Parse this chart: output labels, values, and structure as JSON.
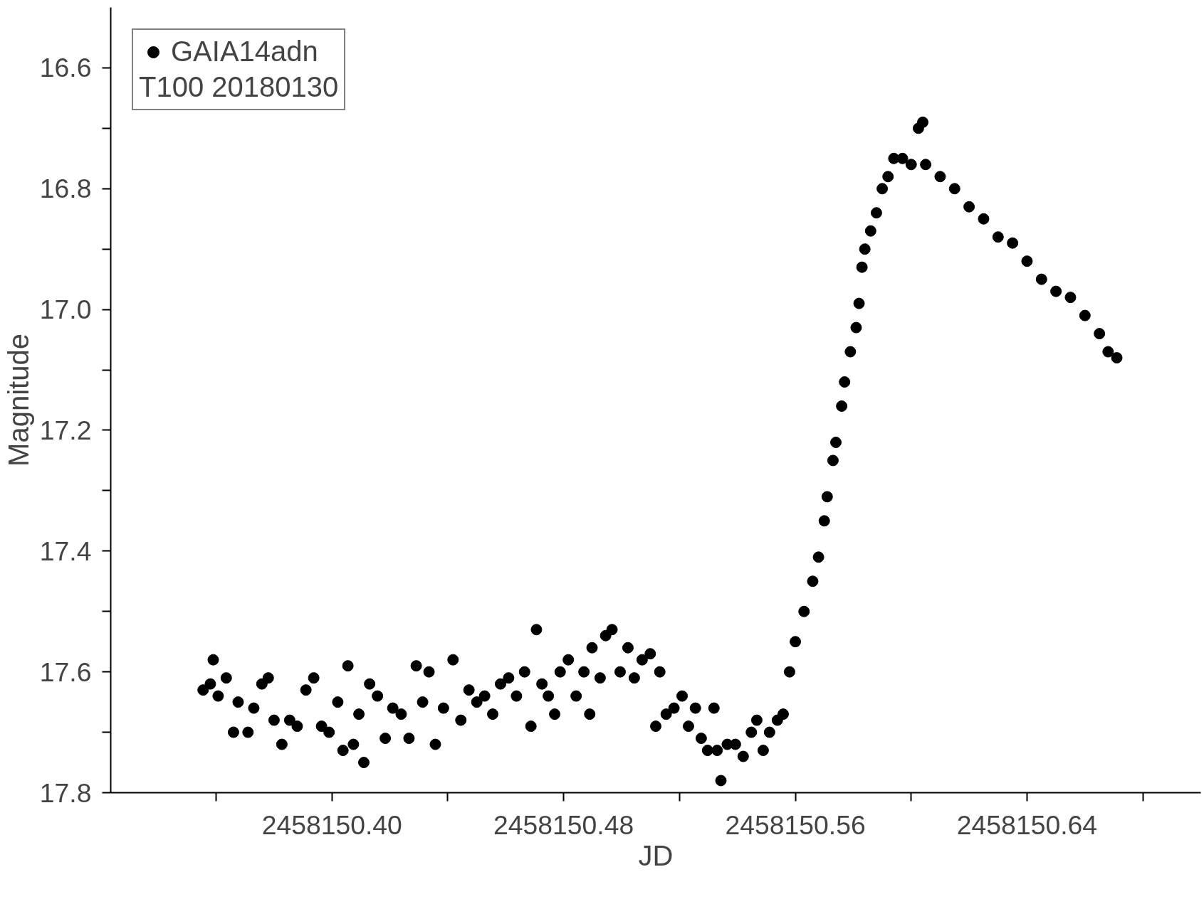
{
  "chart_data": {
    "type": "scatter",
    "xlabel": "JD",
    "ylabel": "Magnitude",
    "legend_title": "T100 20180130",
    "xlim": [
      2458150.3236,
      2458150.7
    ],
    "ylim": [
      17.8,
      16.5
    ],
    "xticks": [
      {
        "value": 2458150.36,
        "label": null
      },
      {
        "value": 2458150.4,
        "label": "2458150.40"
      },
      {
        "value": 2458150.44,
        "label": null
      },
      {
        "value": 2458150.48,
        "label": "2458150.48"
      },
      {
        "value": 2458150.52,
        "label": null
      },
      {
        "value": 2458150.56,
        "label": "2458150.56"
      },
      {
        "value": 2458150.6,
        "label": null
      },
      {
        "value": 2458150.64,
        "label": "2458150.64"
      },
      {
        "value": 2458150.68,
        "label": null
      }
    ],
    "yticks": [
      {
        "value": 16.6,
        "label": "16.6"
      },
      {
        "value": 16.7,
        "label": null
      },
      {
        "value": 16.8,
        "label": "16.8"
      },
      {
        "value": 16.9,
        "label": null
      },
      {
        "value": 17.0,
        "label": "17.0"
      },
      {
        "value": 17.1,
        "label": null
      },
      {
        "value": 17.2,
        "label": "17.2"
      },
      {
        "value": 17.3,
        "label": null
      },
      {
        "value": 17.4,
        "label": "17.4"
      },
      {
        "value": 17.5,
        "label": null
      },
      {
        "value": 17.6,
        "label": "17.6"
      },
      {
        "value": 17.7,
        "label": null
      },
      {
        "value": 17.8,
        "label": "17.8"
      }
    ],
    "grid": false,
    "legend": "top left",
    "marker": "circle",
    "series": [
      {
        "name": "GAIA14adn",
        "color": "#000000",
        "x": [
          2458150.3555,
          2458150.358,
          2458150.359,
          2458150.3607,
          2458150.3635,
          2458150.366,
          2458150.3676,
          2458150.371,
          2458150.373,
          2458150.3758,
          2458150.378,
          2458150.38,
          2458150.3827,
          2458150.3854,
          2458150.388,
          2458150.391,
          2458150.3937,
          2458150.3964,
          2458150.399,
          2458150.402,
          2458150.4038,
          2458150.4055,
          2458150.4074,
          2458150.4093,
          2458150.411,
          2458150.413,
          2458150.4157,
          2458150.4184,
          2458150.421,
          2458150.4239,
          2458150.4266,
          2458150.4291,
          2458150.4313,
          2458150.4335,
          2458150.4357,
          2458150.4385,
          2458150.4418,
          2458150.4445,
          2458150.4473,
          2458150.45,
          2458150.4527,
          2458150.4555,
          2458150.4582,
          2458150.461,
          2458150.4637,
          2458150.4665,
          2458150.4687,
          2458150.4706,
          2458150.4725,
          2458150.4747,
          2458150.4769,
          2458150.4788,
          2458150.4816,
          2458150.4843,
          2458150.487,
          2458150.489,
          2458150.4898,
          2458150.4926,
          2458150.4945,
          2458150.4967,
          2458150.4995,
          2458150.5022,
          2458150.5044,
          2458150.5071,
          2458150.5099,
          2458150.5118,
          2458150.5132,
          2458150.5154,
          2458150.5181,
          2458150.5209,
          2458150.5231,
          2458150.5255,
          2458150.5275,
          2458150.5297,
          2458150.5319,
          2458150.533,
          2458150.5343,
          2458150.5365,
          2458150.5393,
          2458150.542,
          2458150.5448,
          2458150.5467,
          2458150.5489,
          2458150.5511,
          2458150.5538,
          2458150.5558,
          2458150.558,
          2458150.56,
          2458150.563,
          2458150.566,
          2458150.568,
          2458150.57,
          2458150.571,
          2458150.573,
          2458150.574,
          2458150.576,
          2458150.577,
          2458150.579,
          2458150.581,
          2458150.582,
          2458150.583,
          2458150.584,
          2458150.586,
          2458150.588,
          2458150.59,
          2458150.592,
          2458150.594,
          2458150.597,
          2458150.6,
          2458150.6025,
          2458150.604,
          2458150.605,
          2458150.61,
          2458150.615,
          2458150.62,
          2458150.625,
          2458150.63,
          2458150.635,
          2458150.64,
          2458150.645,
          2458150.65,
          2458150.655,
          2458150.66,
          2458150.665,
          2458150.668,
          2458150.671
        ],
        "values": [
          17.63,
          17.62,
          17.58,
          17.64,
          17.61,
          17.7,
          17.65,
          17.7,
          17.66,
          17.62,
          17.61,
          17.68,
          17.72,
          17.68,
          17.69,
          17.63,
          17.61,
          17.69,
          17.7,
          17.65,
          17.73,
          17.59,
          17.72,
          17.67,
          17.75,
          17.62,
          17.64,
          17.71,
          17.66,
          17.67,
          17.71,
          17.59,
          17.65,
          17.6,
          17.72,
          17.66,
          17.58,
          17.68,
          17.63,
          17.65,
          17.64,
          17.67,
          17.62,
          17.61,
          17.64,
          17.6,
          17.69,
          17.53,
          17.62,
          17.64,
          17.67,
          17.6,
          17.58,
          17.64,
          17.6,
          17.67,
          17.56,
          17.61,
          17.54,
          17.53,
          17.6,
          17.56,
          17.61,
          17.58,
          17.57,
          17.69,
          17.6,
          17.67,
          17.66,
          17.64,
          17.69,
          17.66,
          17.71,
          17.73,
          17.66,
          17.73,
          17.78,
          17.72,
          17.72,
          17.74,
          17.7,
          17.68,
          17.73,
          17.7,
          17.68,
          17.67,
          17.6,
          17.55,
          17.5,
          17.45,
          17.41,
          17.35,
          17.31,
          17.25,
          17.22,
          17.16,
          17.12,
          17.07,
          17.03,
          16.99,
          16.93,
          16.9,
          16.87,
          16.84,
          16.8,
          16.78,
          16.75,
          16.75,
          16.76,
          16.7,
          16.69,
          16.76,
          16.78,
          16.8,
          16.83,
          16.85,
          16.88,
          16.89,
          16.92,
          16.95,
          16.97,
          16.98,
          17.01,
          17.04,
          17.07,
          17.08
        ]
      }
    ]
  }
}
